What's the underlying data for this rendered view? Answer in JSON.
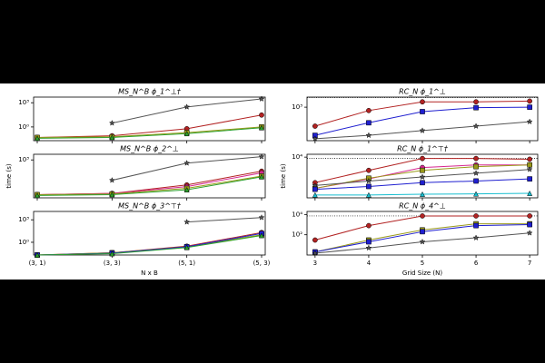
{
  "chart_data": [
    {
      "type": "line",
      "yscale": "log",
      "ylabel": "time (s)",
      "xlabel": "N x B",
      "categories": [
        "(3, 1)",
        "(3, 3)",
        "(5, 1)",
        "(5, 3)"
      ],
      "panels": [
        {
          "title": "MS_N^B ϕ_1^⊥†",
          "ylim": [
            0.02,
            5000
          ],
          "yticks": [
            {
              "value": 1,
              "label": "10⁰"
            },
            {
              "value": 1000,
              "label": "10³"
            }
          ],
          "series": [
            {
              "color": "#555555",
              "marker": "star",
              "values": [
                null,
                3,
                300,
                3000
              ]
            },
            {
              "color": "#b22222",
              "marker": "circle",
              "values": [
                0.05,
                0.08,
                0.6,
                30
              ]
            },
            {
              "color": "#9a9a1a",
              "marker": "square",
              "values": [
                0.05,
                0.06,
                0.2,
                1
              ]
            },
            {
              "color": "#2ca02c",
              "marker": "triangle",
              "values": [
                0.04,
                0.05,
                0.15,
                0.8
              ]
            }
          ]
        },
        {
          "title": "MS_N^B ϕ_2^⊥",
          "ylim": [
            0.02,
            5000
          ],
          "yticks": [
            {
              "value": 1000,
              "label": "10³"
            }
          ],
          "series": [
            {
              "color": "#555555",
              "marker": "star",
              "values": [
                null,
                3,
                400,
                2500
              ]
            },
            {
              "color": "#b22222",
              "marker": "circle",
              "values": [
                0.05,
                0.07,
                0.8,
                40
              ]
            },
            {
              "color": "#d62790",
              "marker": "circle",
              "values": [
                0.05,
                0.07,
                0.5,
                25
              ]
            },
            {
              "color": "#9a9a1a",
              "marker": "square",
              "values": [
                0.05,
                0.06,
                0.3,
                10
              ]
            },
            {
              "color": "#2ca02c",
              "marker": "triangle",
              "values": [
                0.04,
                0.05,
                0.2,
                8
              ]
            }
          ]
        },
        {
          "title": "MS_N^B ϕ_3^⊤†",
          "ylim": [
            0.02,
            13000
          ],
          "yticks": [
            {
              "value": 1,
              "label": "10⁰"
            },
            {
              "value": 1000,
              "label": "10³"
            }
          ],
          "series": [
            {
              "color": "#555555",
              "marker": "star",
              "values": [
                null,
                null,
                500,
                2000
              ]
            },
            {
              "color": "#b22222",
              "marker": "circle",
              "values": [
                0.02,
                0.04,
                0.3,
                20
              ]
            },
            {
              "color": "#9a9a1a",
              "marker": "square",
              "values": [
                0.02,
                0.04,
                0.25,
                10
              ]
            },
            {
              "color": "#1f1fd0",
              "marker": "square",
              "values": [
                0.02,
                0.035,
                0.25,
                15
              ]
            },
            {
              "color": "#2ca02c",
              "marker": "triangle",
              "values": [
                0.02,
                0.03,
                0.2,
                8
              ]
            }
          ]
        }
      ]
    },
    {
      "type": "line",
      "yscale": "log",
      "ylabel": "time (s)",
      "xlabel": "Grid Size (N)",
      "x": [
        3,
        4,
        5,
        6,
        7
      ],
      "xlim": [
        2.85,
        7.15
      ],
      "xticks": [
        3,
        4,
        5,
        6,
        7
      ],
      "panels": [
        {
          "title": "RC_N ϕ_1^⊥",
          "ylim": [
            1,
            8000
          ],
          "yticks": [
            {
              "value": 1000,
              "label": "10³"
            }
          ],
          "hline": 7200,
          "series": [
            {
              "color": "#b22222",
              "marker": "circle",
              "values": [
                20,
                500,
                3000,
                3000,
                3500
              ]
            },
            {
              "color": "#1f1fd0",
              "marker": "square",
              "values": [
                3,
                40,
                400,
                900,
                1000
              ]
            },
            {
              "color": "#555555",
              "marker": "star",
              "values": [
                1.5,
                3,
                8,
                20,
                50
              ]
            }
          ]
        },
        {
          "title": "RC_N ϕ_1^⊤†",
          "ylim": [
            0.5,
            20000
          ],
          "yticks": [
            {
              "value": 10000,
              "label": "10⁴"
            }
          ],
          "hline": 7200,
          "series": [
            {
              "color": "#b22222",
              "marker": "circle",
              "values": [
                20,
                400,
                7200,
                7200,
                6000
              ]
            },
            {
              "color": "#d62790",
              "marker": "circle",
              "values": [
                5,
                50,
                800,
                1500,
                1500
              ]
            },
            {
              "color": "#9a9a1a",
              "marker": "square",
              "values": [
                5,
                60,
                400,
                1000,
                1500
              ]
            },
            {
              "color": "#555555",
              "marker": "star",
              "values": [
                10,
                30,
                80,
                200,
                500
              ]
            },
            {
              "color": "#1f1fd0",
              "marker": "square",
              "values": [
                4,
                8,
                20,
                30,
                50
              ]
            },
            {
              "color": "#17becf",
              "marker": "triangle",
              "values": [
                1,
                1,
                1.2,
                1.3,
                1.5
              ]
            }
          ]
        },
        {
          "title": "RC_N ϕ_4^⊥",
          "ylim": [
            1,
            20000
          ],
          "yticks": [
            {
              "value": 100,
              "label": "10²"
            },
            {
              "value": 10000,
              "label": "10⁴"
            }
          ],
          "hline": 7200,
          "series": [
            {
              "color": "#b22222",
              "marker": "circle",
              "values": [
                30,
                800,
                7200,
                7200,
                7200
              ]
            },
            {
              "color": "#9a9a1a",
              "marker": "square",
              "values": [
                2,
                30,
                300,
                1200,
                1200
              ]
            },
            {
              "color": "#1f1fd0",
              "marker": "square",
              "values": [
                2,
                20,
                200,
                800,
                1000
              ]
            },
            {
              "color": "#555555",
              "marker": "star",
              "values": [
                1.5,
                5,
                20,
                50,
                150
              ]
            }
          ]
        }
      ]
    }
  ]
}
